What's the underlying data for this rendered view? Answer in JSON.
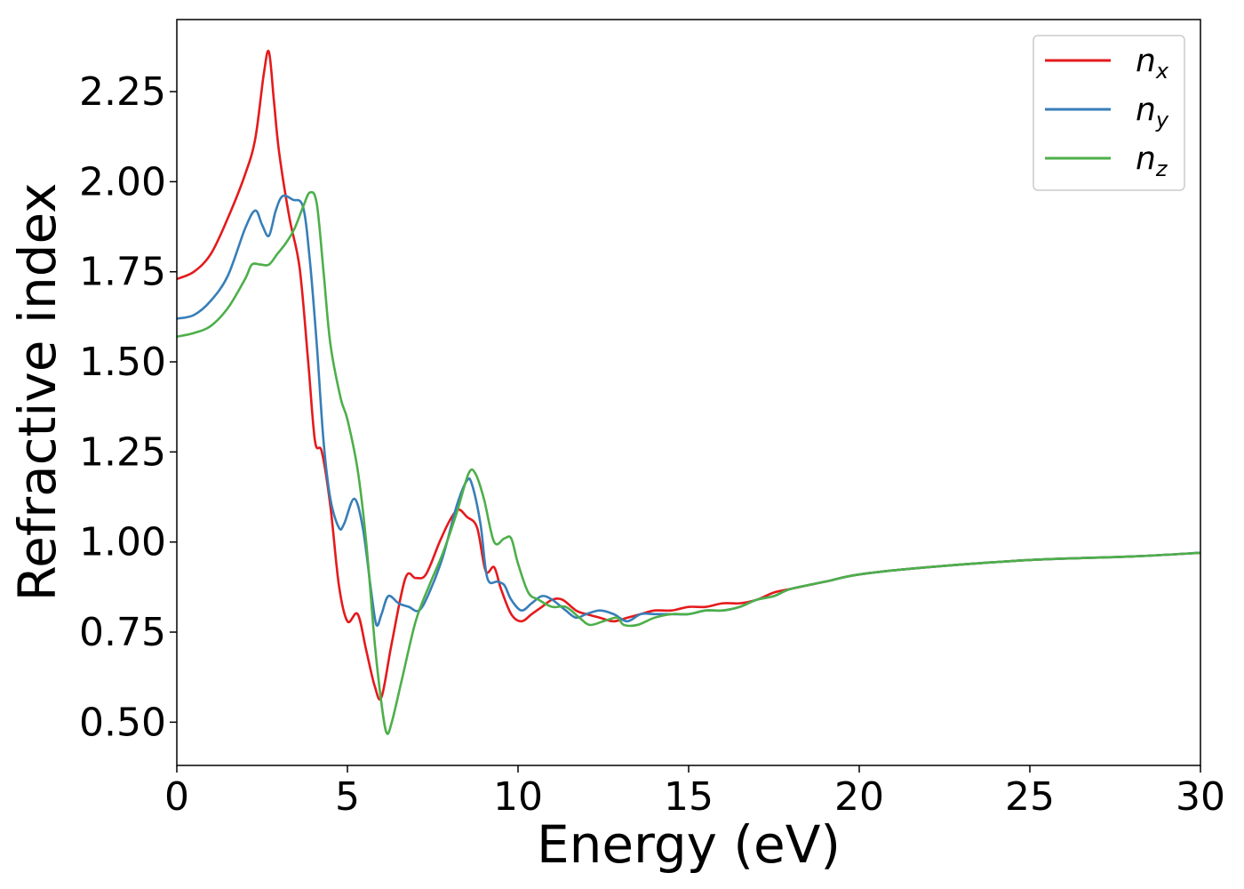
{
  "chart_data": {
    "type": "line",
    "title": "",
    "xlabel": "Energy (eV)",
    "ylabel": "Refractive index",
    "xlim": [
      0,
      30
    ],
    "ylim": [
      0.38,
      2.45
    ],
    "xticks": [
      0,
      5,
      10,
      15,
      20,
      25,
      30
    ],
    "xtick_labels": [
      "0",
      "5",
      "10",
      "15",
      "20",
      "25",
      "30"
    ],
    "yticks": [
      0.5,
      0.75,
      1.0,
      1.25,
      1.5,
      1.75,
      2.0,
      2.25
    ],
    "ytick_labels": [
      "0.50",
      "0.75",
      "1.00",
      "1.25",
      "1.50",
      "1.75",
      "2.00",
      "2.25"
    ],
    "grid": false,
    "legend_position": "top-right",
    "series": [
      {
        "name": "n_x",
        "label_base": "n",
        "label_sub": "x",
        "color": "#e41a1c",
        "x": [
          0,
          0.5,
          1.0,
          1.5,
          2.0,
          2.3,
          2.55,
          2.7,
          2.85,
          3.0,
          3.3,
          3.6,
          3.85,
          4.05,
          4.25,
          4.5,
          4.75,
          5.0,
          5.3,
          5.55,
          5.8,
          6.0,
          6.3,
          6.7,
          7.0,
          7.3,
          7.7,
          8.0,
          8.25,
          8.5,
          8.8,
          9.05,
          9.3,
          9.5,
          9.8,
          10.1,
          10.4,
          10.7,
          11.0,
          11.3,
          11.7,
          12.0,
          12.4,
          12.8,
          13.2,
          13.6,
          14.0,
          14.5,
          15.0,
          15.5,
          16.0,
          16.5,
          17.0,
          17.5,
          18.0,
          19.0,
          20.0,
          22.0,
          25.0,
          28.0,
          30.0
        ],
        "y": [
          1.73,
          1.75,
          1.8,
          1.9,
          2.02,
          2.12,
          2.3,
          2.36,
          2.22,
          2.08,
          1.9,
          1.76,
          1.5,
          1.28,
          1.25,
          1.1,
          0.88,
          0.78,
          0.8,
          0.7,
          0.6,
          0.57,
          0.72,
          0.9,
          0.9,
          0.91,
          1.0,
          1.06,
          1.09,
          1.07,
          1.04,
          0.92,
          0.93,
          0.87,
          0.8,
          0.78,
          0.8,
          0.82,
          0.84,
          0.84,
          0.81,
          0.8,
          0.79,
          0.78,
          0.79,
          0.8,
          0.81,
          0.81,
          0.82,
          0.82,
          0.83,
          0.83,
          0.84,
          0.86,
          0.87,
          0.89,
          0.91,
          0.93,
          0.95,
          0.96,
          0.97
        ]
      },
      {
        "name": "n_y",
        "label_base": "n",
        "label_sub": "y",
        "color": "#377eb8",
        "x": [
          0,
          0.5,
          1.0,
          1.5,
          2.0,
          2.3,
          2.5,
          2.7,
          2.9,
          3.1,
          3.4,
          3.7,
          3.9,
          4.1,
          4.3,
          4.5,
          4.75,
          4.9,
          5.2,
          5.45,
          5.7,
          5.85,
          6.0,
          6.2,
          6.5,
          6.8,
          7.1,
          7.4,
          7.8,
          8.2,
          8.5,
          8.65,
          8.9,
          9.1,
          9.4,
          9.6,
          9.8,
          10.1,
          10.4,
          10.7,
          11.0,
          11.4,
          11.7,
          12.0,
          12.4,
          12.8,
          13.2,
          13.6,
          14.0,
          14.5,
          15.0,
          15.5,
          16.0,
          16.5,
          17.0,
          17.5,
          18.0,
          19.0,
          20.0,
          22.0,
          25.0,
          28.0,
          30.0
        ],
        "y": [
          1.62,
          1.63,
          1.67,
          1.74,
          1.87,
          1.92,
          1.88,
          1.85,
          1.92,
          1.96,
          1.95,
          1.93,
          1.78,
          1.55,
          1.28,
          1.12,
          1.04,
          1.05,
          1.12,
          1.04,
          0.86,
          0.77,
          0.8,
          0.85,
          0.83,
          0.82,
          0.81,
          0.86,
          0.96,
          1.1,
          1.17,
          1.16,
          1.05,
          0.9,
          0.89,
          0.88,
          0.84,
          0.81,
          0.83,
          0.85,
          0.84,
          0.81,
          0.79,
          0.8,
          0.81,
          0.8,
          0.78,
          0.8,
          0.8,
          0.8,
          0.8,
          0.81,
          0.81,
          0.82,
          0.84,
          0.85,
          0.87,
          0.89,
          0.91,
          0.93,
          0.95,
          0.96,
          0.97
        ]
      },
      {
        "name": "n_z",
        "label_base": "n",
        "label_sub": "z",
        "color": "#4daf4a",
        "x": [
          0,
          0.5,
          1.0,
          1.5,
          2.0,
          2.2,
          2.45,
          2.7,
          2.95,
          3.2,
          3.45,
          3.7,
          3.9,
          4.1,
          4.3,
          4.5,
          4.8,
          5.0,
          5.3,
          5.55,
          5.8,
          6.0,
          6.15,
          6.3,
          6.6,
          7.0,
          7.4,
          7.8,
          8.2,
          8.55,
          8.75,
          9.0,
          9.3,
          9.6,
          9.8,
          10.0,
          10.3,
          10.6,
          11.0,
          11.4,
          11.8,
          12.1,
          12.5,
          12.9,
          13.1,
          13.5,
          14.0,
          14.5,
          15.0,
          15.5,
          16.0,
          16.5,
          17.0,
          17.5,
          18.0,
          19.0,
          20.0,
          22.0,
          25.0,
          28.0,
          30.0
        ],
        "y": [
          1.57,
          1.58,
          1.6,
          1.65,
          1.73,
          1.77,
          1.77,
          1.77,
          1.8,
          1.83,
          1.87,
          1.93,
          1.97,
          1.94,
          1.75,
          1.55,
          1.4,
          1.34,
          1.2,
          1.0,
          0.72,
          0.55,
          0.47,
          0.5,
          0.62,
          0.78,
          0.88,
          0.97,
          1.08,
          1.19,
          1.19,
          1.12,
          1.0,
          1.01,
          1.01,
          0.94,
          0.86,
          0.84,
          0.82,
          0.82,
          0.79,
          0.77,
          0.78,
          0.79,
          0.77,
          0.77,
          0.79,
          0.8,
          0.8,
          0.81,
          0.81,
          0.82,
          0.84,
          0.85,
          0.87,
          0.89,
          0.91,
          0.93,
          0.95,
          0.96,
          0.97
        ]
      }
    ]
  }
}
